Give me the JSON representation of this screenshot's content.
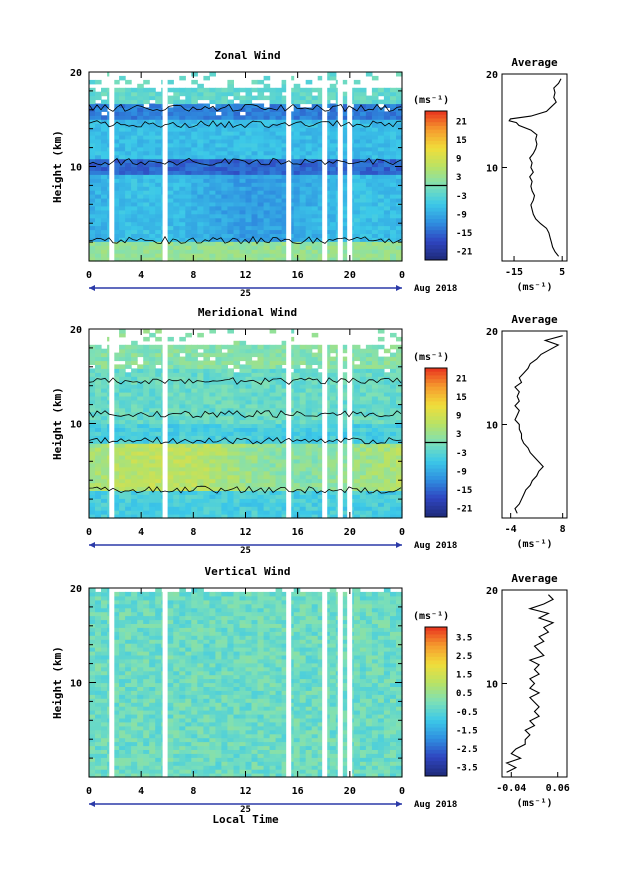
{
  "chart_data": [
    {
      "type": "heatmap",
      "title": "Zonal Wind",
      "ylabel": "Height (km)",
      "ylim": [
        0,
        20
      ],
      "yticks": [
        "10",
        "20"
      ],
      "xticks": [
        "0",
        "4",
        "8",
        "12",
        "16",
        "20",
        "0"
      ],
      "date_label": "25",
      "month_label": "Aug 2018",
      "colorbar": {
        "unit": "(ms⁻¹)",
        "range": [
          -24,
          24
        ],
        "tick_labels": [
          "21",
          "15",
          "9",
          "3",
          "-3",
          "-9",
          "-15",
          "-21"
        ],
        "zero_fraction": 0.5
      },
      "average": {
        "title": "Average",
        "xlabel": "(ms⁻¹)",
        "xticks": [
          "-15",
          "5"
        ],
        "xlim": [
          -20,
          7
        ],
        "yticks": [
          "10",
          "20"
        ],
        "ylim": [
          0,
          20
        ],
        "profile": [
          {
            "h": 0.5,
            "v": 3.5
          },
          {
            "h": 1.0,
            "v": 2.0
          },
          {
            "h": 1.5,
            "v": 1.0
          },
          {
            "h": 2.0,
            "v": 0.5
          },
          {
            "h": 2.5,
            "v": 0.0
          },
          {
            "h": 3.0,
            "v": -0.5
          },
          {
            "h": 3.5,
            "v": -1.5
          },
          {
            "h": 4.0,
            "v": -4.0
          },
          {
            "h": 4.5,
            "v": -6.0
          },
          {
            "h": 5.0,
            "v": -7.0
          },
          {
            "h": 5.5,
            "v": -7.5
          },
          {
            "h": 6.0,
            "v": -8.0
          },
          {
            "h": 6.5,
            "v": -7.0
          },
          {
            "h": 7.0,
            "v": -6.5
          },
          {
            "h": 7.5,
            "v": -7.5
          },
          {
            "h": 8.0,
            "v": -8.0
          },
          {
            "h": 8.5,
            "v": -7.5
          },
          {
            "h": 9.0,
            "v": -8.5
          },
          {
            "h": 9.5,
            "v": -7.0
          },
          {
            "h": 10.0,
            "v": -8.0
          },
          {
            "h": 10.5,
            "v": -7.5
          },
          {
            "h": 11.0,
            "v": -8.5
          },
          {
            "h": 11.5,
            "v": -7.0
          },
          {
            "h": 12.0,
            "v": -6.0
          },
          {
            "h": 12.5,
            "v": -5.5
          },
          {
            "h": 13.0,
            "v": -6.0
          },
          {
            "h": 13.5,
            "v": -5.5
          },
          {
            "h": 14.0,
            "v": -8.0
          },
          {
            "h": 14.5,
            "v": -13.0
          },
          {
            "h": 14.8,
            "v": -14.0
          },
          {
            "h": 15.0,
            "v": -17.0
          },
          {
            "h": 15.2,
            "v": -16.5
          },
          {
            "h": 15.5,
            "v": -8.0
          },
          {
            "h": 16.0,
            "v": -1.5
          },
          {
            "h": 16.5,
            "v": 0.5
          },
          {
            "h": 17.0,
            "v": 2.5
          },
          {
            "h": 17.5,
            "v": 1.5
          },
          {
            "h": 18.0,
            "v": 2.0
          },
          {
            "h": 18.5,
            "v": 1.5
          },
          {
            "h": 19.0,
            "v": 3.5
          },
          {
            "h": 19.5,
            "v": 4.5
          }
        ]
      }
    },
    {
      "type": "heatmap",
      "title": "Meridional Wind",
      "ylabel": "Height (km)",
      "ylim": [
        0,
        20
      ],
      "yticks": [
        "10",
        "20"
      ],
      "xticks": [
        "0",
        "4",
        "8",
        "12",
        "16",
        "20",
        "0"
      ],
      "date_label": "25",
      "month_label": "Aug 2018",
      "colorbar": {
        "unit": "(ms⁻¹)",
        "range": [
          -24,
          24
        ],
        "tick_labels": [
          "21",
          "15",
          "9",
          "3",
          "-3",
          "-9",
          "-15",
          "-21"
        ],
        "zero_fraction": 0.5
      },
      "average": {
        "title": "Average",
        "xlabel": "(ms⁻¹)",
        "xticks": [
          "-4",
          "8"
        ],
        "xlim": [
          -6,
          9
        ],
        "yticks": [
          "10",
          "20"
        ],
        "ylim": [
          0,
          20
        ],
        "profile": [
          {
            "h": 0.5,
            "v": -2.5
          },
          {
            "h": 1.0,
            "v": -3.0
          },
          {
            "h": 1.5,
            "v": -2.0
          },
          {
            "h": 2.0,
            "v": -1.5
          },
          {
            "h": 2.5,
            "v": -1.0
          },
          {
            "h": 3.0,
            "v": -0.5
          },
          {
            "h": 3.5,
            "v": 0.5
          },
          {
            "h": 4.0,
            "v": 1.0
          },
          {
            "h": 4.5,
            "v": 2.0
          },
          {
            "h": 5.0,
            "v": 2.5
          },
          {
            "h": 5.5,
            "v": 3.5
          },
          {
            "h": 6.0,
            "v": 2.5
          },
          {
            "h": 6.5,
            "v": 1.5
          },
          {
            "h": 7.0,
            "v": 0.5
          },
          {
            "h": 7.5,
            "v": 0.0
          },
          {
            "h": 8.0,
            "v": -1.0
          },
          {
            "h": 8.5,
            "v": -1.5
          },
          {
            "h": 9.0,
            "v": -1.5
          },
          {
            "h": 9.5,
            "v": -2.0
          },
          {
            "h": 10.0,
            "v": -2.0
          },
          {
            "h": 10.5,
            "v": -3.0
          },
          {
            "h": 11.0,
            "v": -2.5
          },
          {
            "h": 11.5,
            "v": -2.0
          },
          {
            "h": 12.0,
            "v": -3.0
          },
          {
            "h": 12.5,
            "v": -2.0
          },
          {
            "h": 13.0,
            "v": -2.5
          },
          {
            "h": 13.5,
            "v": -2.0
          },
          {
            "h": 14.0,
            "v": -3.0
          },
          {
            "h": 14.5,
            "v": -1.5
          },
          {
            "h": 15.0,
            "v": -2.0
          },
          {
            "h": 15.5,
            "v": -1.0
          },
          {
            "h": 16.0,
            "v": 0.0
          },
          {
            "h": 16.5,
            "v": 0.5
          },
          {
            "h": 17.0,
            "v": 2.0
          },
          {
            "h": 17.5,
            "v": 3.0
          },
          {
            "h": 18.0,
            "v": 5.0
          },
          {
            "h": 18.5,
            "v": 7.0
          },
          {
            "h": 19.0,
            "v": 4.0
          },
          {
            "h": 19.5,
            "v": 8.0
          }
        ]
      }
    },
    {
      "type": "heatmap",
      "title": "Vertical Wind",
      "ylabel": "Height (km)",
      "xlabel": "Local Time",
      "ylim": [
        0,
        20
      ],
      "yticks": [
        "10",
        "20"
      ],
      "xticks": [
        "0",
        "4",
        "8",
        "12",
        "16",
        "20",
        "0"
      ],
      "date_label": "25",
      "month_label": "Aug 2018",
      "colorbar": {
        "unit": "(ms⁻¹)",
        "range": [
          -4,
          4
        ],
        "tick_labels": [
          "3.5",
          "2.5",
          "1.5",
          "0.5",
          "-0.5",
          "-1.5",
          "-2.5",
          "-3.5"
        ],
        "zero_fraction": null
      },
      "average": {
        "title": "Average",
        "xlabel": "(ms⁻¹)",
        "xticks": [
          "-0.04",
          "0.06"
        ],
        "xlim": [
          -0.06,
          0.08
        ],
        "yticks": [
          "10",
          "20"
        ],
        "ylim": [
          0,
          20
        ],
        "profile": [
          {
            "h": 0.5,
            "v": -0.05
          },
          {
            "h": 1.0,
            "v": -0.03
          },
          {
            "h": 1.5,
            "v": -0.05
          },
          {
            "h": 2.0,
            "v": -0.02
          },
          {
            "h": 2.5,
            "v": -0.04
          },
          {
            "h": 3.0,
            "v": -0.03
          },
          {
            "h": 3.5,
            "v": -0.01
          },
          {
            "h": 4.0,
            "v": -0.01
          },
          {
            "h": 4.5,
            "v": 0.0
          },
          {
            "h": 5.0,
            "v": -0.01
          },
          {
            "h": 5.5,
            "v": 0.01
          },
          {
            "h": 6.0,
            "v": 0.0
          },
          {
            "h": 6.5,
            "v": 0.02
          },
          {
            "h": 7.0,
            "v": 0.01
          },
          {
            "h": 7.5,
            "v": 0.02
          },
          {
            "h": 8.0,
            "v": 0.01
          },
          {
            "h": 8.5,
            "v": 0.0
          },
          {
            "h": 9.0,
            "v": 0.02
          },
          {
            "h": 9.5,
            "v": 0.0
          },
          {
            "h": 10.0,
            "v": 0.01
          },
          {
            "h": 10.5,
            "v": 0.0
          },
          {
            "h": 11.0,
            "v": 0.02
          },
          {
            "h": 11.5,
            "v": 0.01
          },
          {
            "h": 12.0,
            "v": 0.02
          },
          {
            "h": 12.5,
            "v": 0.0
          },
          {
            "h": 13.0,
            "v": 0.03
          },
          {
            "h": 13.5,
            "v": 0.02
          },
          {
            "h": 14.0,
            "v": 0.01
          },
          {
            "h": 14.5,
            "v": 0.03
          },
          {
            "h": 15.0,
            "v": 0.02
          },
          {
            "h": 15.5,
            "v": 0.04
          },
          {
            "h": 16.0,
            "v": 0.03
          },
          {
            "h": 16.5,
            "v": 0.05
          },
          {
            "h": 17.0,
            "v": 0.02
          },
          {
            "h": 17.5,
            "v": 0.04
          },
          {
            "h": 18.0,
            "v": 0.0
          },
          {
            "h": 18.5,
            "v": 0.03
          },
          {
            "h": 19.0,
            "v": 0.05
          },
          {
            "h": 19.5,
            "v": 0.04
          }
        ]
      }
    }
  ],
  "colors": {
    "colorbar_stops": [
      "#1e2a78",
      "#2f45c0",
      "#2f8fe0",
      "#3cc9e8",
      "#7ee0b6",
      "#b9e264",
      "#f1dd3a",
      "#f59a2e",
      "#e8321e"
    ]
  }
}
